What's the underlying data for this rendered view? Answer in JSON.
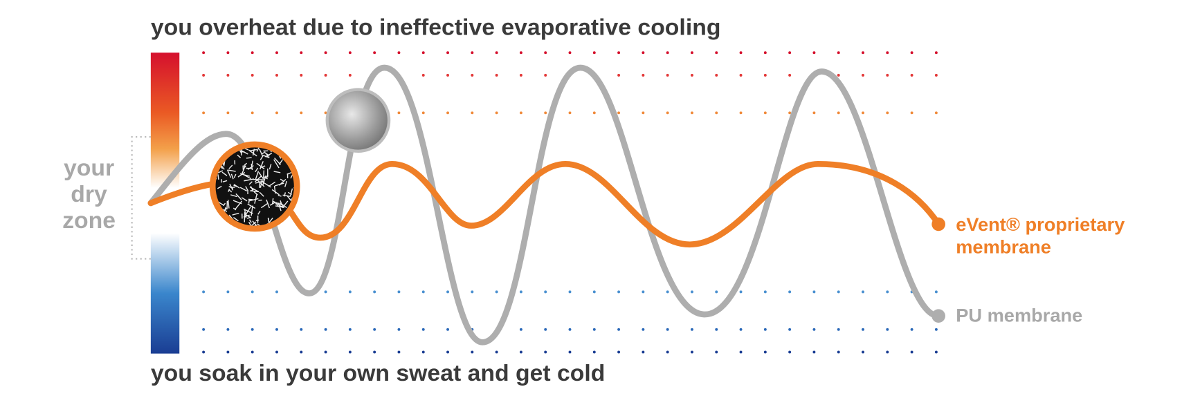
{
  "header": {
    "title": "you overheat due to ineffective evaporative cooling"
  },
  "footer": {
    "text": "you soak in your own sweat and get cold"
  },
  "dry_zone": {
    "lines": [
      "your",
      "dry",
      "zone"
    ]
  },
  "legend": {
    "event": {
      "lines": [
        "eVent® proprietary",
        "membrane"
      ]
    },
    "pu": {
      "label": "PU membrane"
    }
  }
}
